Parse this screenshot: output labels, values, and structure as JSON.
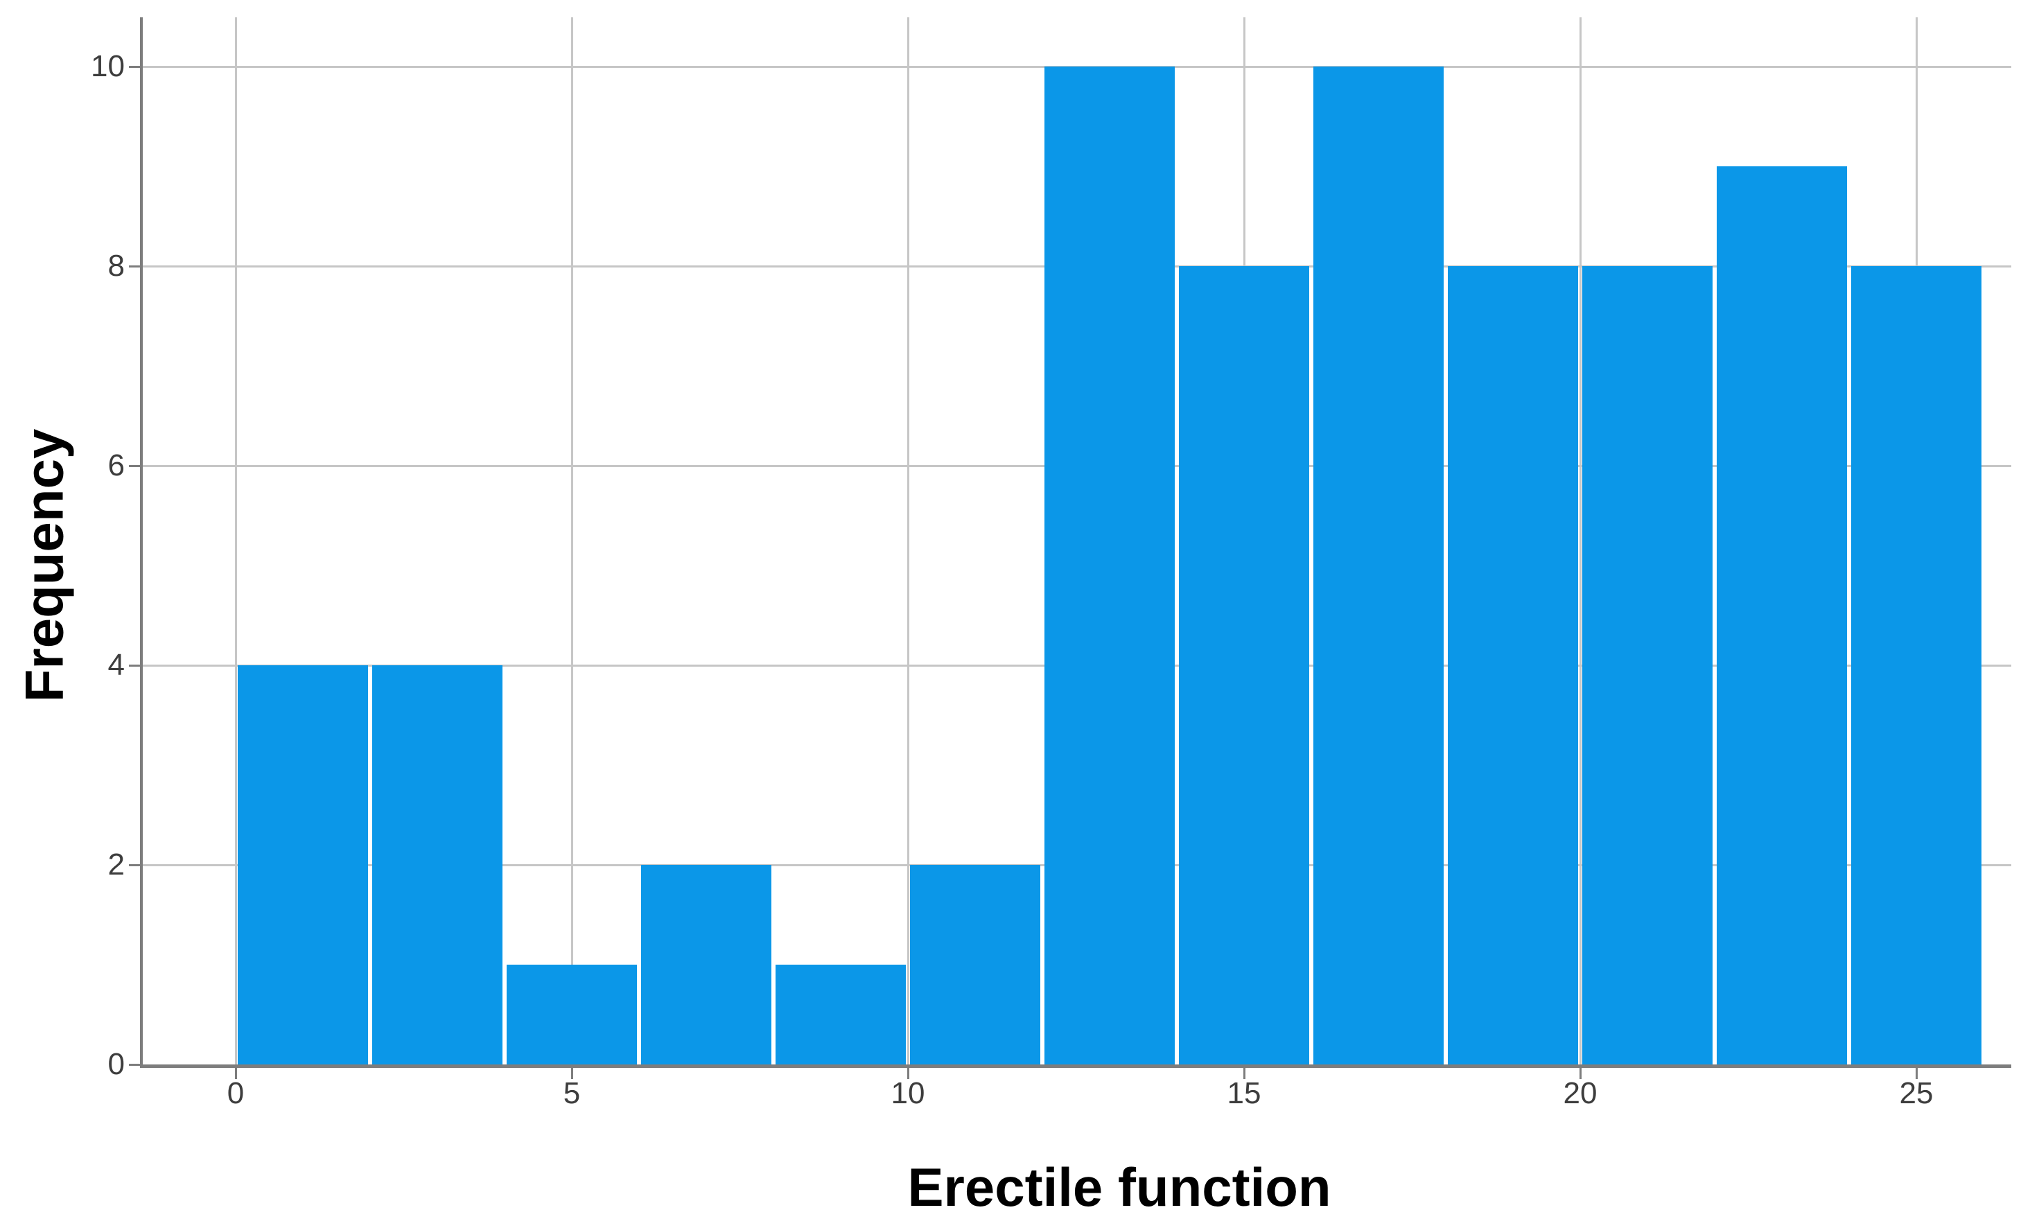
{
  "chart_data": {
    "type": "bar",
    "subtype": "histogram",
    "title": "",
    "xlabel": "Erectile function",
    "ylabel": "Frequency",
    "bin_edges": [
      0,
      2,
      4,
      6,
      8,
      10,
      12,
      14,
      16,
      18,
      20,
      22,
      24,
      26
    ],
    "counts": [
      4,
      4,
      1,
      2,
      1,
      2,
      10,
      8,
      10,
      8,
      8,
      9,
      8
    ],
    "bins": [
      {
        "range": "0-2",
        "count": 4
      },
      {
        "range": "2-4",
        "count": 4
      },
      {
        "range": "4-6",
        "count": 1
      },
      {
        "range": "6-8",
        "count": 2
      },
      {
        "range": "8-10",
        "count": 1
      },
      {
        "range": "10-12",
        "count": 2
      },
      {
        "range": "12-14",
        "count": 10
      },
      {
        "range": "14-16",
        "count": 8
      },
      {
        "range": "16-18",
        "count": 10
      },
      {
        "range": "18-20",
        "count": 8
      },
      {
        "range": "20-22",
        "count": 8
      },
      {
        "range": "22-24",
        "count": 9
      },
      {
        "range": "24-26",
        "count": 8
      }
    ],
    "x_ticks": [
      0,
      5,
      10,
      15,
      20,
      25
    ],
    "y_ticks": [
      0,
      2,
      4,
      6,
      8,
      10
    ],
    "xlim": [
      0,
      26
    ],
    "ylim": [
      0,
      10
    ],
    "grid": true,
    "legend": null,
    "colors": {
      "bar": "#0b97e8",
      "gridline": "#c6c6c6",
      "axis": "#7d7d7d",
      "tick_label": "#3d3d3d",
      "axis_title": "#000000",
      "background": "#ffffff"
    }
  }
}
